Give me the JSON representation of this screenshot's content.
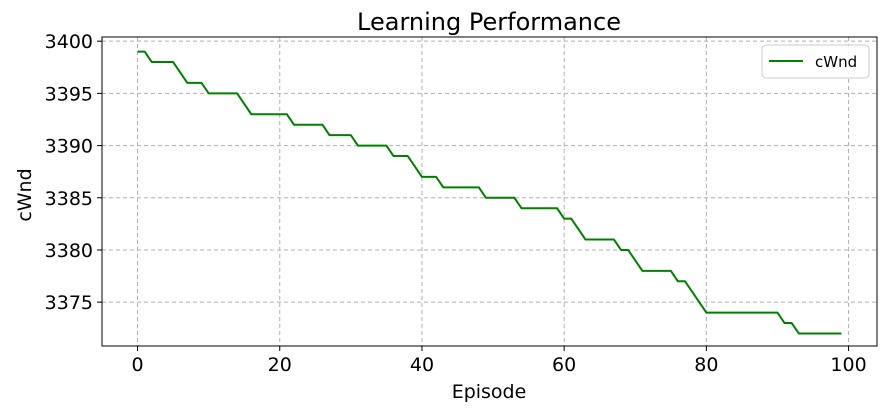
{
  "chart_data": {
    "type": "line",
    "title": "Learning Performance",
    "xlabel": "Episode",
    "ylabel": "cWnd",
    "xlim": [
      -5,
      104
    ],
    "ylim": [
      3370.8,
      3400.4
    ],
    "xticks": [
      0,
      20,
      40,
      60,
      80,
      100
    ],
    "yticks": [
      3375,
      3380,
      3385,
      3390,
      3395,
      3400
    ],
    "grid": true,
    "legend_position": "top-right",
    "series": [
      {
        "name": "cWnd",
        "color": "#008000",
        "x": [
          0,
          1,
          2,
          3,
          4,
          5,
          6,
          7,
          8,
          9,
          10,
          11,
          12,
          13,
          14,
          15,
          16,
          17,
          18,
          19,
          20,
          21,
          22,
          23,
          24,
          25,
          26,
          27,
          28,
          29,
          30,
          31,
          32,
          33,
          34,
          35,
          36,
          37,
          38,
          39,
          40,
          41,
          42,
          43,
          44,
          45,
          46,
          47,
          48,
          49,
          50,
          51,
          52,
          53,
          54,
          55,
          56,
          57,
          58,
          59,
          60,
          61,
          62,
          63,
          64,
          65,
          66,
          67,
          68,
          69,
          70,
          71,
          72,
          73,
          74,
          75,
          76,
          77,
          78,
          79,
          80,
          81,
          82,
          83,
          84,
          85,
          86,
          87,
          88,
          89,
          90,
          91,
          92,
          93,
          94,
          95,
          96,
          97,
          98,
          99
        ],
        "y": [
          3399,
          3399,
          3398,
          3398,
          3398,
          3398,
          3397,
          3396,
          3396,
          3396,
          3395,
          3395,
          3395,
          3395,
          3395,
          3394,
          3393,
          3393,
          3393,
          3393,
          3393,
          3393,
          3392,
          3392,
          3392,
          3392,
          3392,
          3391,
          3391,
          3391,
          3391,
          3390,
          3390,
          3390,
          3390,
          3390,
          3389,
          3389,
          3389,
          3388,
          3387,
          3387,
          3387,
          3386,
          3386,
          3386,
          3386,
          3386,
          3386,
          3385,
          3385,
          3385,
          3385,
          3385,
          3384,
          3384,
          3384,
          3384,
          3384,
          3384,
          3383,
          3383,
          3382,
          3381,
          3381,
          3381,
          3381,
          3381,
          3380,
          3380,
          3379,
          3378,
          3378,
          3378,
          3378,
          3378,
          3377,
          3377,
          3376,
          3375,
          3374,
          3374,
          3374,
          3374,
          3374,
          3374,
          3374,
          3374,
          3374,
          3374,
          3374,
          3373,
          3373,
          3372,
          3372,
          3372,
          3372,
          3372,
          3372,
          3372
        ]
      }
    ]
  }
}
